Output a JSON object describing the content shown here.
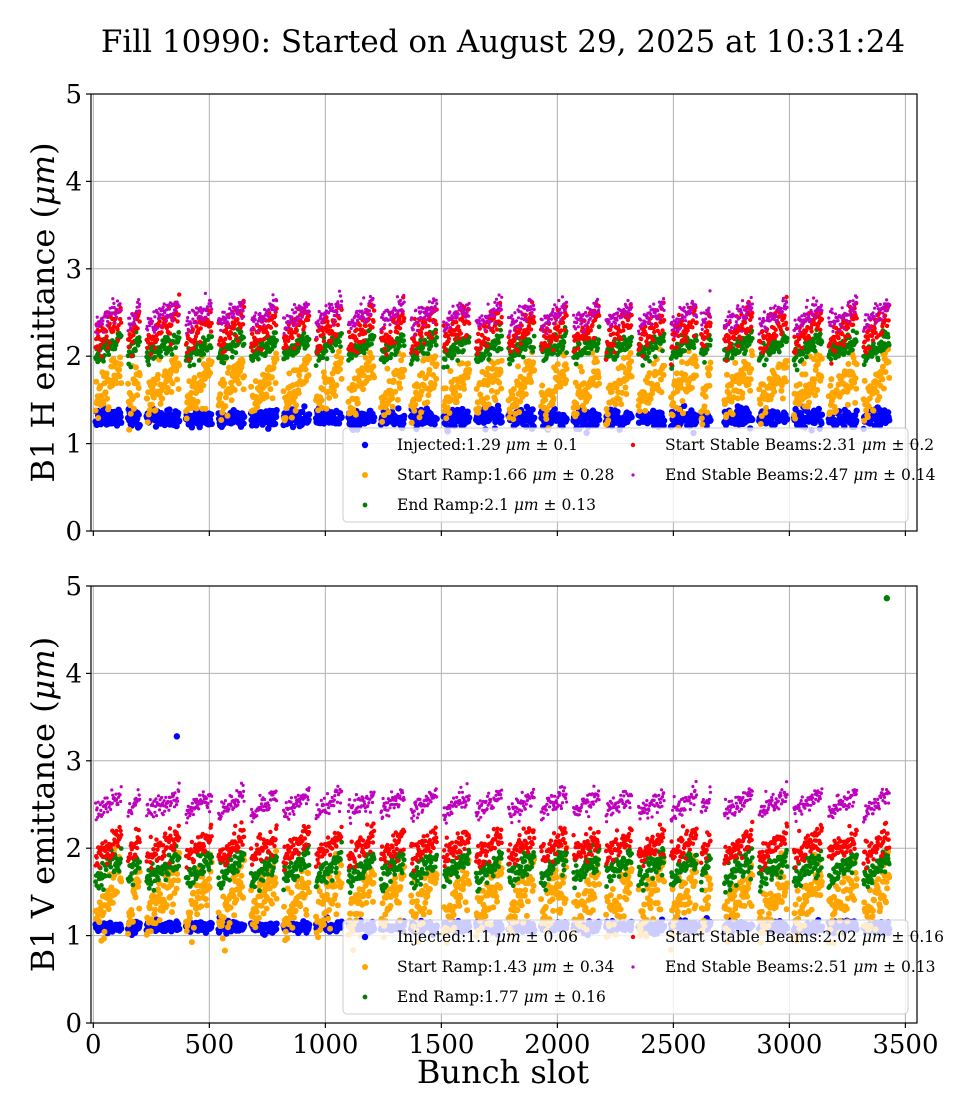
{
  "figure": {
    "title": "Fill 10990: Started on August 29, 2025 at 10:31:24",
    "xlabel": "Bunch slot"
  },
  "colors": {
    "Injected": "#0000ff",
    "Start Ramp": "#ffa500",
    "End Ramp": "#008000",
    "Start Stable Beams": "#ff0000",
    "End Stable Beams": "#bf00bf"
  },
  "chart_data": [
    {
      "type": "scatter",
      "ylabel_text": "B1 H emittance (",
      "ylabel_symbol": "μm",
      "ylabel_close": ")",
      "xlim": [
        -10,
        3550
      ],
      "ylim": [
        0,
        5
      ],
      "xticks": [
        "0",
        "500",
        "1000",
        "1500",
        "2000",
        "2500",
        "3000",
        "3500"
      ],
      "yticks": [
        "0",
        "1",
        "2",
        "3",
        "4",
        "5"
      ],
      "show_x_tick_labels": false,
      "grid": true,
      "legend_position": "lower-right",
      "bunch_trains": [
        [
          10,
          120
        ],
        [
          150,
          200
        ],
        [
          230,
          370
        ],
        [
          400,
          510
        ],
        [
          540,
          650
        ],
        [
          680,
          790
        ],
        [
          820,
          930
        ],
        [
          960,
          1070
        ],
        [
          1100,
          1210
        ],
        [
          1240,
          1340
        ],
        [
          1370,
          1480
        ],
        [
          1510,
          1620
        ],
        [
          1650,
          1760
        ],
        [
          1790,
          1900
        ],
        [
          1930,
          2040
        ],
        [
          2070,
          2180
        ],
        [
          2210,
          2320
        ],
        [
          2350,
          2460
        ],
        [
          2490,
          2600
        ],
        [
          2620,
          2660
        ],
        [
          2720,
          2840
        ],
        [
          2870,
          2990
        ],
        [
          3020,
          3140
        ],
        [
          3170,
          3290
        ],
        [
          3320,
          3430
        ]
      ],
      "series": [
        {
          "name": "Injected",
          "legend": "Injected:1.29",
          "unit": "μm",
          "err": "± 0.1",
          "mean": 1.29,
          "spread": 0.1,
          "dot": 3.2
        },
        {
          "name": "Start Ramp",
          "legend": "Start Ramp:1.66",
          "unit": "μm",
          "err": "± 0.28",
          "mean": 1.66,
          "spread": 0.28,
          "dot": 3.0
        },
        {
          "name": "End Ramp",
          "legend": "End Ramp:2.1",
          "unit": "μm",
          "err": "± 0.13",
          "mean": 2.1,
          "spread": 0.13,
          "dot": 2.4
        },
        {
          "name": "Start Stable Beams",
          "legend": "Start Stable Beams:2.31",
          "unit": "μm",
          "err": "± 0.2",
          "mean": 2.31,
          "spread": 0.2,
          "dot": 2.2
        },
        {
          "name": "End Stable Beams",
          "legend": "End Stable Beams:2.47",
          "unit": "μm",
          "err": "± 0.14",
          "mean": 2.47,
          "spread": 0.14,
          "dot": 1.6
        }
      ]
    },
    {
      "type": "scatter",
      "ylabel_text": "B1 V emittance (",
      "ylabel_symbol": "μm",
      "ylabel_close": ")",
      "xlim": [
        -10,
        3550
      ],
      "ylim": [
        0,
        5
      ],
      "xticks": [
        "0",
        "500",
        "1000",
        "1500",
        "2000",
        "2500",
        "3000",
        "3500"
      ],
      "yticks": [
        "0",
        "1",
        "2",
        "3",
        "4",
        "5"
      ],
      "show_x_tick_labels": true,
      "grid": true,
      "legend_position": "lower-right",
      "bunch_trains": [
        [
          10,
          120
        ],
        [
          150,
          200
        ],
        [
          230,
          370
        ],
        [
          400,
          510
        ],
        [
          540,
          650
        ],
        [
          680,
          790
        ],
        [
          820,
          930
        ],
        [
          960,
          1070
        ],
        [
          1100,
          1210
        ],
        [
          1240,
          1340
        ],
        [
          1370,
          1480
        ],
        [
          1510,
          1620
        ],
        [
          1650,
          1760
        ],
        [
          1790,
          1900
        ],
        [
          1930,
          2040
        ],
        [
          2070,
          2180
        ],
        [
          2210,
          2320
        ],
        [
          2350,
          2460
        ],
        [
          2490,
          2600
        ],
        [
          2620,
          2660
        ],
        [
          2720,
          2840
        ],
        [
          2870,
          2990
        ],
        [
          3020,
          3140
        ],
        [
          3170,
          3290
        ],
        [
          3320,
          3430
        ]
      ],
      "outliers": [
        {
          "series": "Injected",
          "x": 360,
          "y": 3.28
        },
        {
          "series": "End Ramp",
          "x": 3420,
          "y": 4.86
        }
      ],
      "series": [
        {
          "name": "Injected",
          "legend": "Injected:1.1",
          "unit": "μm",
          "err": "± 0.06",
          "mean": 1.1,
          "spread": 0.06,
          "dot": 3.2
        },
        {
          "name": "Start Ramp",
          "legend": "Start Ramp:1.43",
          "unit": "μm",
          "err": "± 0.34",
          "mean": 1.43,
          "spread": 0.34,
          "dot": 3.0
        },
        {
          "name": "End Ramp",
          "legend": "End Ramp:1.77",
          "unit": "μm",
          "err": "± 0.16",
          "mean": 1.77,
          "spread": 0.16,
          "dot": 2.4
        },
        {
          "name": "Start Stable Beams",
          "legend": "Start Stable Beams:2.02",
          "unit": "μm",
          "err": "± 0.16",
          "mean": 2.02,
          "spread": 0.16,
          "dot": 2.2
        },
        {
          "name": "End Stable Beams",
          "legend": "End Stable Beams:2.51",
          "unit": "μm",
          "err": "± 0.13",
          "mean": 2.51,
          "spread": 0.13,
          "dot": 1.6
        }
      ]
    }
  ]
}
